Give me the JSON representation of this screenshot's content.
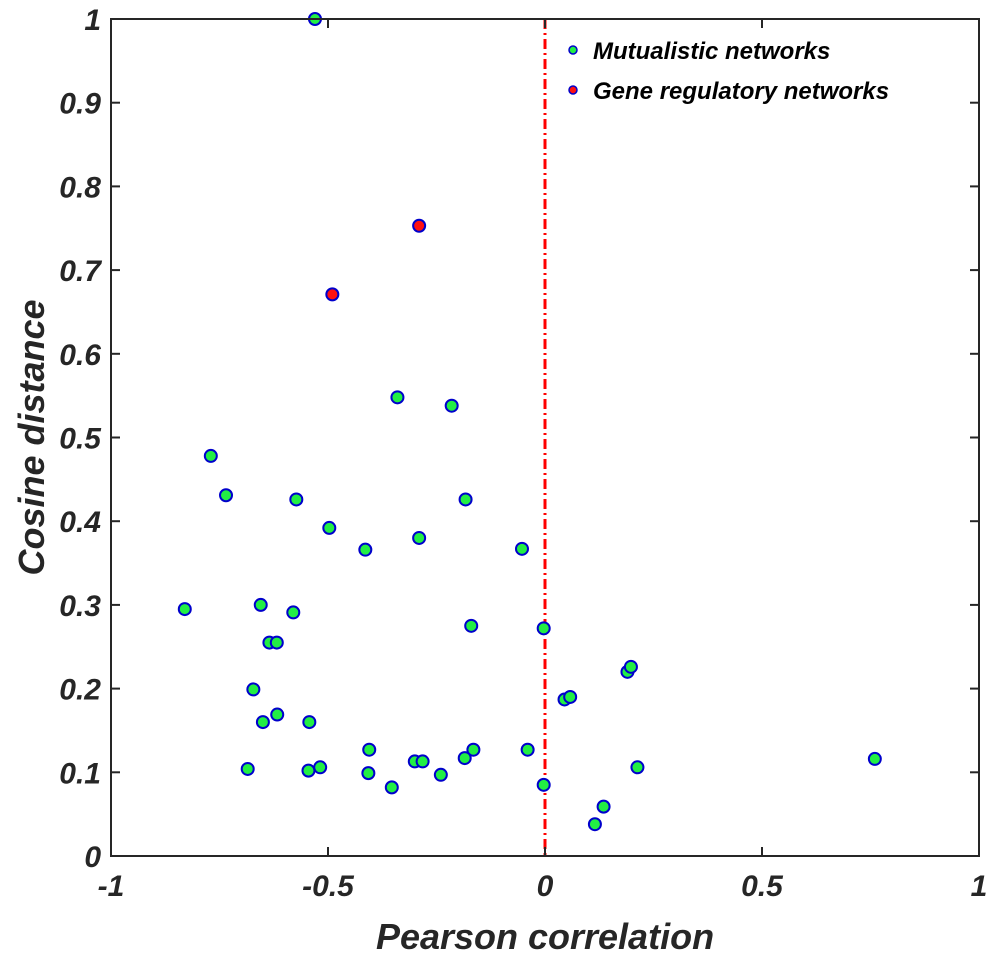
{
  "chart_data": {
    "type": "scatter",
    "title": "",
    "xlabel": "Pearson correlation",
    "ylabel": "Cosine distance",
    "xlim": [
      -1,
      1
    ],
    "ylim": [
      0,
      1
    ],
    "xticks": [
      -1,
      -0.5,
      0,
      0.5,
      1
    ],
    "xtick_labels": [
      "-1",
      "-0.5",
      "0",
      "0.5",
      "1"
    ],
    "yticks": [
      0,
      0.1,
      0.2,
      0.3,
      0.4,
      0.5,
      0.6,
      0.7,
      0.8,
      0.9,
      1
    ],
    "ytick_labels": [
      "0",
      "0.1",
      "0.2",
      "0.3",
      "0.4",
      "0.5",
      "0.6",
      "0.7",
      "0.8",
      "0.9",
      "1"
    ],
    "grid": false,
    "legend_position": "top-right",
    "reference_line": {
      "x": 0,
      "color": "#ff0000",
      "style": "dash-dot"
    },
    "series": [
      {
        "name": "Mutualistic networks",
        "fill": "#22ee44",
        "edge": "#0000cc",
        "points": [
          [
            -0.53,
            1.0
          ],
          [
            -0.34,
            0.548
          ],
          [
            -0.215,
            0.538
          ],
          [
            -0.77,
            0.478
          ],
          [
            -0.735,
            0.431
          ],
          [
            -0.573,
            0.426
          ],
          [
            -0.183,
            0.426
          ],
          [
            -0.497,
            0.392
          ],
          [
            -0.414,
            0.366
          ],
          [
            -0.29,
            0.38
          ],
          [
            -0.053,
            0.367
          ],
          [
            -0.83,
            0.295
          ],
          [
            -0.655,
            0.3
          ],
          [
            -0.58,
            0.291
          ],
          [
            -0.635,
            0.255
          ],
          [
            -0.618,
            0.255
          ],
          [
            -0.17,
            0.275
          ],
          [
            -0.003,
            0.272
          ],
          [
            -0.672,
            0.199
          ],
          [
            0.045,
            0.187
          ],
          [
            0.058,
            0.19
          ],
          [
            0.19,
            0.22
          ],
          [
            0.198,
            0.226
          ],
          [
            -0.65,
            0.16
          ],
          [
            -0.617,
            0.169
          ],
          [
            -0.543,
            0.16
          ],
          [
            -0.405,
            0.127
          ],
          [
            -0.165,
            0.127
          ],
          [
            -0.04,
            0.127
          ],
          [
            -0.685,
            0.104
          ],
          [
            -0.545,
            0.102
          ],
          [
            -0.518,
            0.106
          ],
          [
            -0.407,
            0.099
          ],
          [
            -0.3,
            0.113
          ],
          [
            -0.282,
            0.113
          ],
          [
            -0.185,
            0.117
          ],
          [
            -0.24,
            0.097
          ],
          [
            -0.353,
            0.082
          ],
          [
            -0.003,
            0.085
          ],
          [
            0.213,
            0.106
          ],
          [
            0.76,
            0.116
          ],
          [
            0.135,
            0.059
          ],
          [
            0.115,
            0.038
          ]
        ]
      },
      {
        "name": "Gene regulatory networks",
        "fill": "#ff1111",
        "edge": "#0000cc",
        "points": [
          [
            -0.29,
            0.753
          ],
          [
            -0.49,
            0.671
          ]
        ]
      }
    ]
  }
}
